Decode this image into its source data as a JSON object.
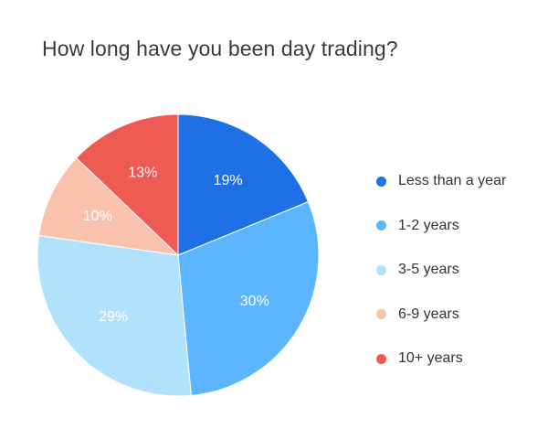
{
  "chart_data": {
    "type": "pie",
    "title": "How long have you been day trading?",
    "categories": [
      "Less than a year",
      "1-2 years",
      "3-5 years",
      "6-9 years",
      "10+ years"
    ],
    "values": [
      19,
      30,
      29,
      10,
      13
    ],
    "labels": [
      "19%",
      "30%",
      "29%",
      "10%",
      "13%"
    ],
    "colors": [
      "#1f6fe5",
      "#5cb5ff",
      "#b1e2fd",
      "#f9c2ad",
      "#ee5a54"
    ],
    "label_colors": [
      "#ffffff",
      "#ffffff",
      "#ffffff",
      "#ffffff",
      "#ffffff"
    ],
    "legend_position": "right"
  }
}
